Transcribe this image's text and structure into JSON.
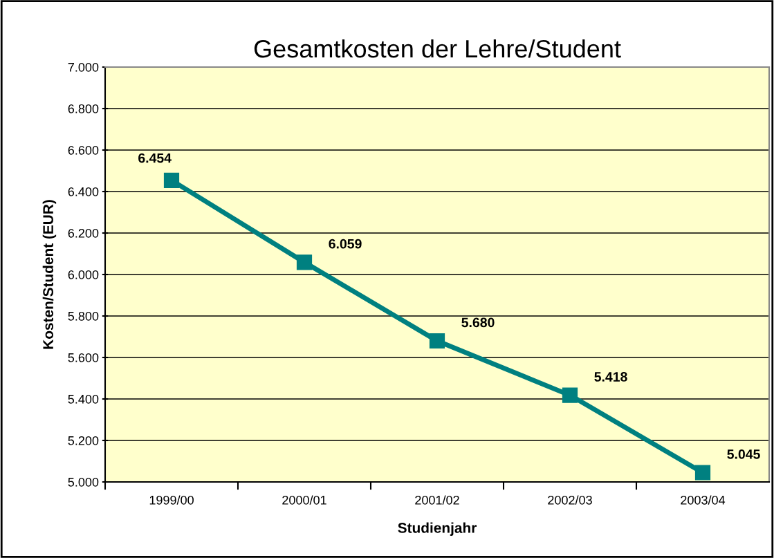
{
  "chart_data": {
    "type": "line",
    "title": "Gesamtkosten der Lehre/Student",
    "xlabel": "Studienjahr",
    "ylabel": "Kosten/Student (EUR)",
    "categories": [
      "1999/00",
      "2000/01",
      "2001/02",
      "2002/03",
      "2003/04"
    ],
    "series": [
      {
        "color": "#008080",
        "values": [
          6454,
          6059,
          5680,
          5418,
          5045
        ],
        "value_labels": [
          "6.454",
          "6.059",
          "5.680",
          "5.418",
          "5.045"
        ]
      }
    ],
    "ylim": [
      5000,
      7000
    ],
    "yticks": [
      {
        "value": 5000,
        "label": "5.000"
      },
      {
        "value": 5200,
        "label": "5.200"
      },
      {
        "value": 5400,
        "label": "5.400"
      },
      {
        "value": 5600,
        "label": "5.600"
      },
      {
        "value": 5800,
        "label": "5.800"
      },
      {
        "value": 6000,
        "label": "6.000"
      },
      {
        "value": 6200,
        "label": "6.200"
      },
      {
        "value": 6400,
        "label": "6.400"
      },
      {
        "value": 6600,
        "label": "6.600"
      },
      {
        "value": 6800,
        "label": "6.800"
      },
      {
        "value": 7000,
        "label": "7.000"
      }
    ],
    "grid": "y",
    "marker": "square",
    "line_style": "solid"
  }
}
